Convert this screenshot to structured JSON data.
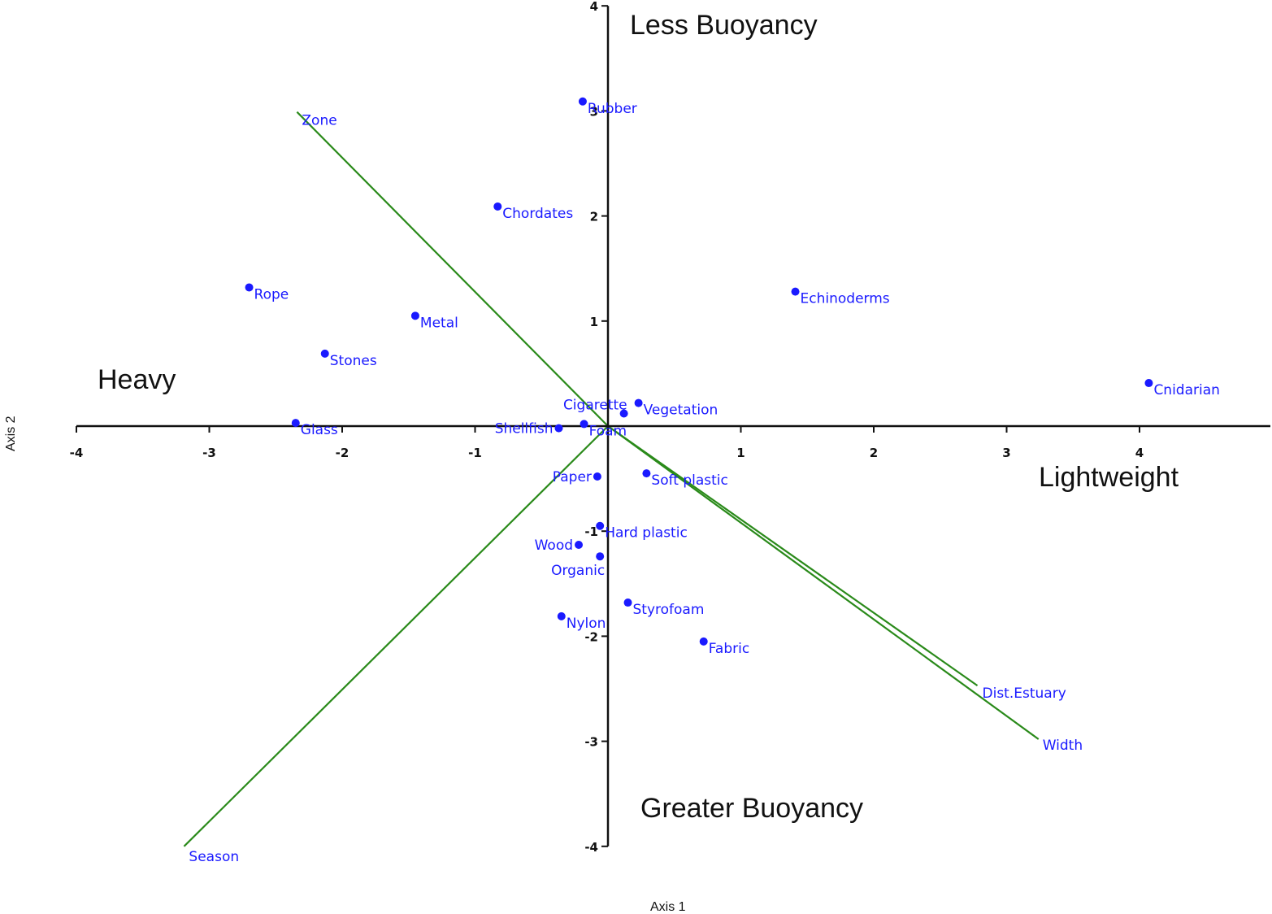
{
  "chart_data": {
    "type": "scatter",
    "title": "",
    "xlabel": "Axis 1",
    "ylabel": "Axis 2",
    "xlim": [
      -4,
      5
    ],
    "ylim": [
      -4,
      4
    ],
    "x_ticks": [
      -4,
      -3,
      -2,
      -1,
      1,
      2,
      3,
      4
    ],
    "y_ticks": [
      4,
      3,
      2,
      1,
      -1,
      -2,
      -3,
      -4
    ],
    "grid": false,
    "colors": {
      "points": "#1a1aff",
      "vectors": "#2a8a1a",
      "axes": "#111111"
    },
    "region_labels": {
      "top": "Less Buoyancy",
      "bottom": "Greater Buoyancy",
      "left": "Heavy",
      "right": "Lightweight"
    },
    "points": [
      {
        "label": "Rubber",
        "x": -0.19,
        "y": 3.09
      },
      {
        "label": "Chordates",
        "x": -0.83,
        "y": 2.09
      },
      {
        "label": "Rope",
        "x": -2.7,
        "y": 1.32
      },
      {
        "label": "Metal",
        "x": -1.45,
        "y": 1.05
      },
      {
        "label": "Stones",
        "x": -2.13,
        "y": 0.69
      },
      {
        "label": "Echinoderms",
        "x": 1.41,
        "y": 1.28
      },
      {
        "label": "Cnidarian",
        "x": 4.07,
        "y": 0.41
      },
      {
        "label": "Glass",
        "x": -2.35,
        "y": 0.03
      },
      {
        "label": "Shellfish",
        "x": -0.37,
        "y": -0.02
      },
      {
        "label": "Foam",
        "x": -0.18,
        "y": 0.02
      },
      {
        "label": "Cigarette",
        "x": 0.12,
        "y": 0.12
      },
      {
        "label": "Vegetation",
        "x": 0.23,
        "y": 0.22
      },
      {
        "label": "Paper",
        "x": -0.08,
        "y": -0.48
      },
      {
        "label": "Soft plastic",
        "x": 0.29,
        "y": -0.45
      },
      {
        "label": "Hard plastic",
        "x": -0.06,
        "y": -0.95
      },
      {
        "label": "Wood",
        "x": -0.22,
        "y": -1.13
      },
      {
        "label": "Organic",
        "x": -0.06,
        "y": -1.24
      },
      {
        "label": "Styrofoam",
        "x": 0.15,
        "y": -1.68
      },
      {
        "label": "Nylon",
        "x": -0.35,
        "y": -1.81
      },
      {
        "label": "Fabric",
        "x": 0.72,
        "y": -2.05
      }
    ],
    "vectors": [
      {
        "label": "Zone",
        "x": -2.34,
        "y": 2.99
      },
      {
        "label": "Season",
        "x": -3.19,
        "y": -4.0
      },
      {
        "label": "Dist.Estuary",
        "x": 2.78,
        "y": -2.47
      },
      {
        "label": "Width",
        "x": 3.24,
        "y": -2.98
      }
    ]
  }
}
